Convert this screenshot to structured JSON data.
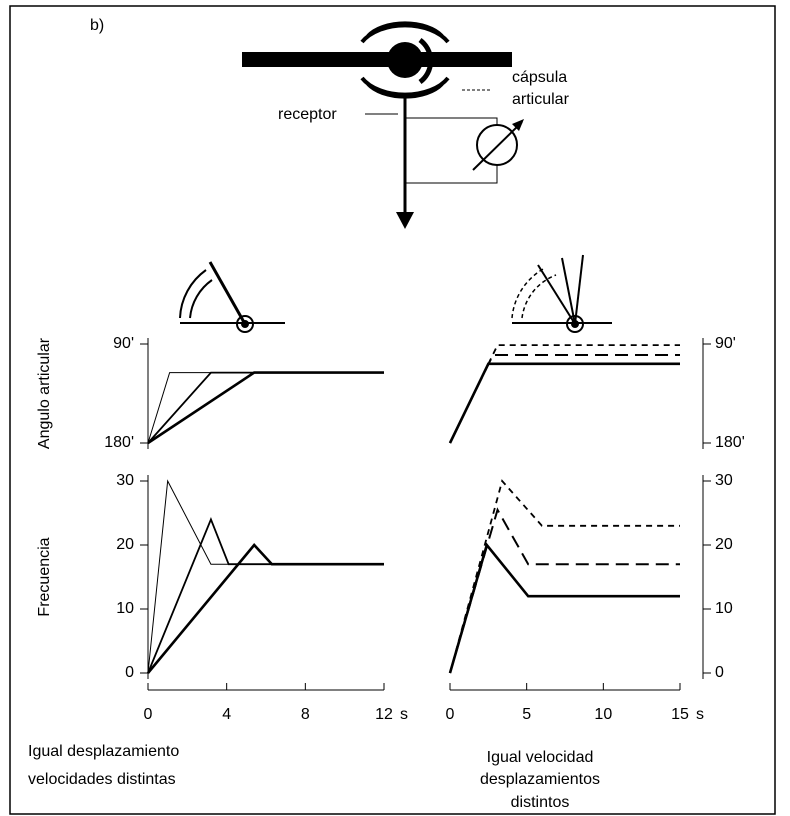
{
  "panel_label": "b)",
  "diagram": {
    "capsule_label": [
      "cápsula",
      "articular"
    ],
    "receptor_label": "receptor"
  },
  "captions": [
    [
      "Igual desplazamiento",
      "velocidades distintas"
    ],
    [
      "Igual velocidad",
      "desplazamientos",
      "distintos"
    ]
  ],
  "chart_data": [
    {
      "type": "line",
      "ylabel": "Angulo articular",
      "xlim": [
        0,
        12
      ],
      "ylim": [
        180,
        90
      ],
      "yticks": [
        {
          "value": 90,
          "label": "90'"
        },
        {
          "value": 180,
          "label": "180'"
        }
      ],
      "color": "#000000",
      "series": [
        {
          "width": 1,
          "dash": "solid",
          "x": [
            0,
            1.1,
            12
          ],
          "values": [
            180,
            116,
            116
          ]
        },
        {
          "width": 1.8,
          "dash": "solid",
          "x": [
            0,
            3.2,
            12
          ],
          "values": [
            180,
            116,
            116
          ]
        },
        {
          "width": 2.6,
          "dash": "solid",
          "x": [
            0,
            5.4,
            12
          ],
          "values": [
            180,
            116,
            116
          ]
        }
      ]
    },
    {
      "type": "line",
      "ylabel": "Frecuencia",
      "xlabel": "s",
      "xlim": [
        0,
        12
      ],
      "ylim": [
        0,
        30
      ],
      "xticks": [
        0,
        4,
        8,
        12
      ],
      "yticks": [
        0,
        10,
        20,
        30
      ],
      "color": "#000000",
      "series": [
        {
          "width": 1,
          "dash": "solid",
          "x": [
            0,
            1,
            3.2,
            12
          ],
          "values": [
            0,
            30,
            17,
            17
          ]
        },
        {
          "width": 1.8,
          "dash": "solid",
          "x": [
            0,
            3.2,
            4.1,
            12
          ],
          "values": [
            0,
            24,
            17,
            17
          ]
        },
        {
          "width": 2.6,
          "dash": "solid",
          "x": [
            0,
            5.4,
            6.3,
            12
          ],
          "values": [
            0,
            20,
            17,
            17
          ]
        }
      ]
    },
    {
      "type": "line",
      "xlim": [
        0,
        15
      ],
      "ylim": [
        180,
        90
      ],
      "axis_side": "right",
      "yticks": [
        {
          "value": 90,
          "label": "90'"
        },
        {
          "value": 180,
          "label": "180'"
        }
      ],
      "color": "#000000",
      "series": [
        {
          "width": 1.8,
          "dash": "short",
          "x": [
            0,
            3.1,
            15
          ],
          "values": [
            180,
            91,
            91
          ]
        },
        {
          "width": 2,
          "dash": "long",
          "x": [
            0,
            2.8,
            15
          ],
          "values": [
            180,
            100,
            100
          ]
        },
        {
          "width": 2.6,
          "dash": "solid",
          "x": [
            0,
            2.5,
            15
          ],
          "values": [
            180,
            108,
            108
          ]
        }
      ]
    },
    {
      "type": "line",
      "xlabel": "s",
      "xlim": [
        0,
        15
      ],
      "ylim": [
        0,
        30
      ],
      "axis_side": "right",
      "xticks": [
        0,
        5,
        10,
        15
      ],
      "yticks": [
        0,
        10,
        20,
        30
      ],
      "color": "#000000",
      "series": [
        {
          "width": 1.8,
          "dash": "short",
          "x": [
            0,
            3.4,
            6,
            15
          ],
          "values": [
            0,
            30,
            23,
            23
          ]
        },
        {
          "width": 2,
          "dash": "long",
          "x": [
            0,
            3.1,
            5.1,
            15
          ],
          "values": [
            0,
            25.5,
            17,
            17
          ]
        },
        {
          "width": 2.6,
          "dash": "solid",
          "x": [
            0,
            2.4,
            5.1,
            15
          ],
          "values": [
            0,
            20,
            12,
            12
          ]
        }
      ]
    }
  ]
}
